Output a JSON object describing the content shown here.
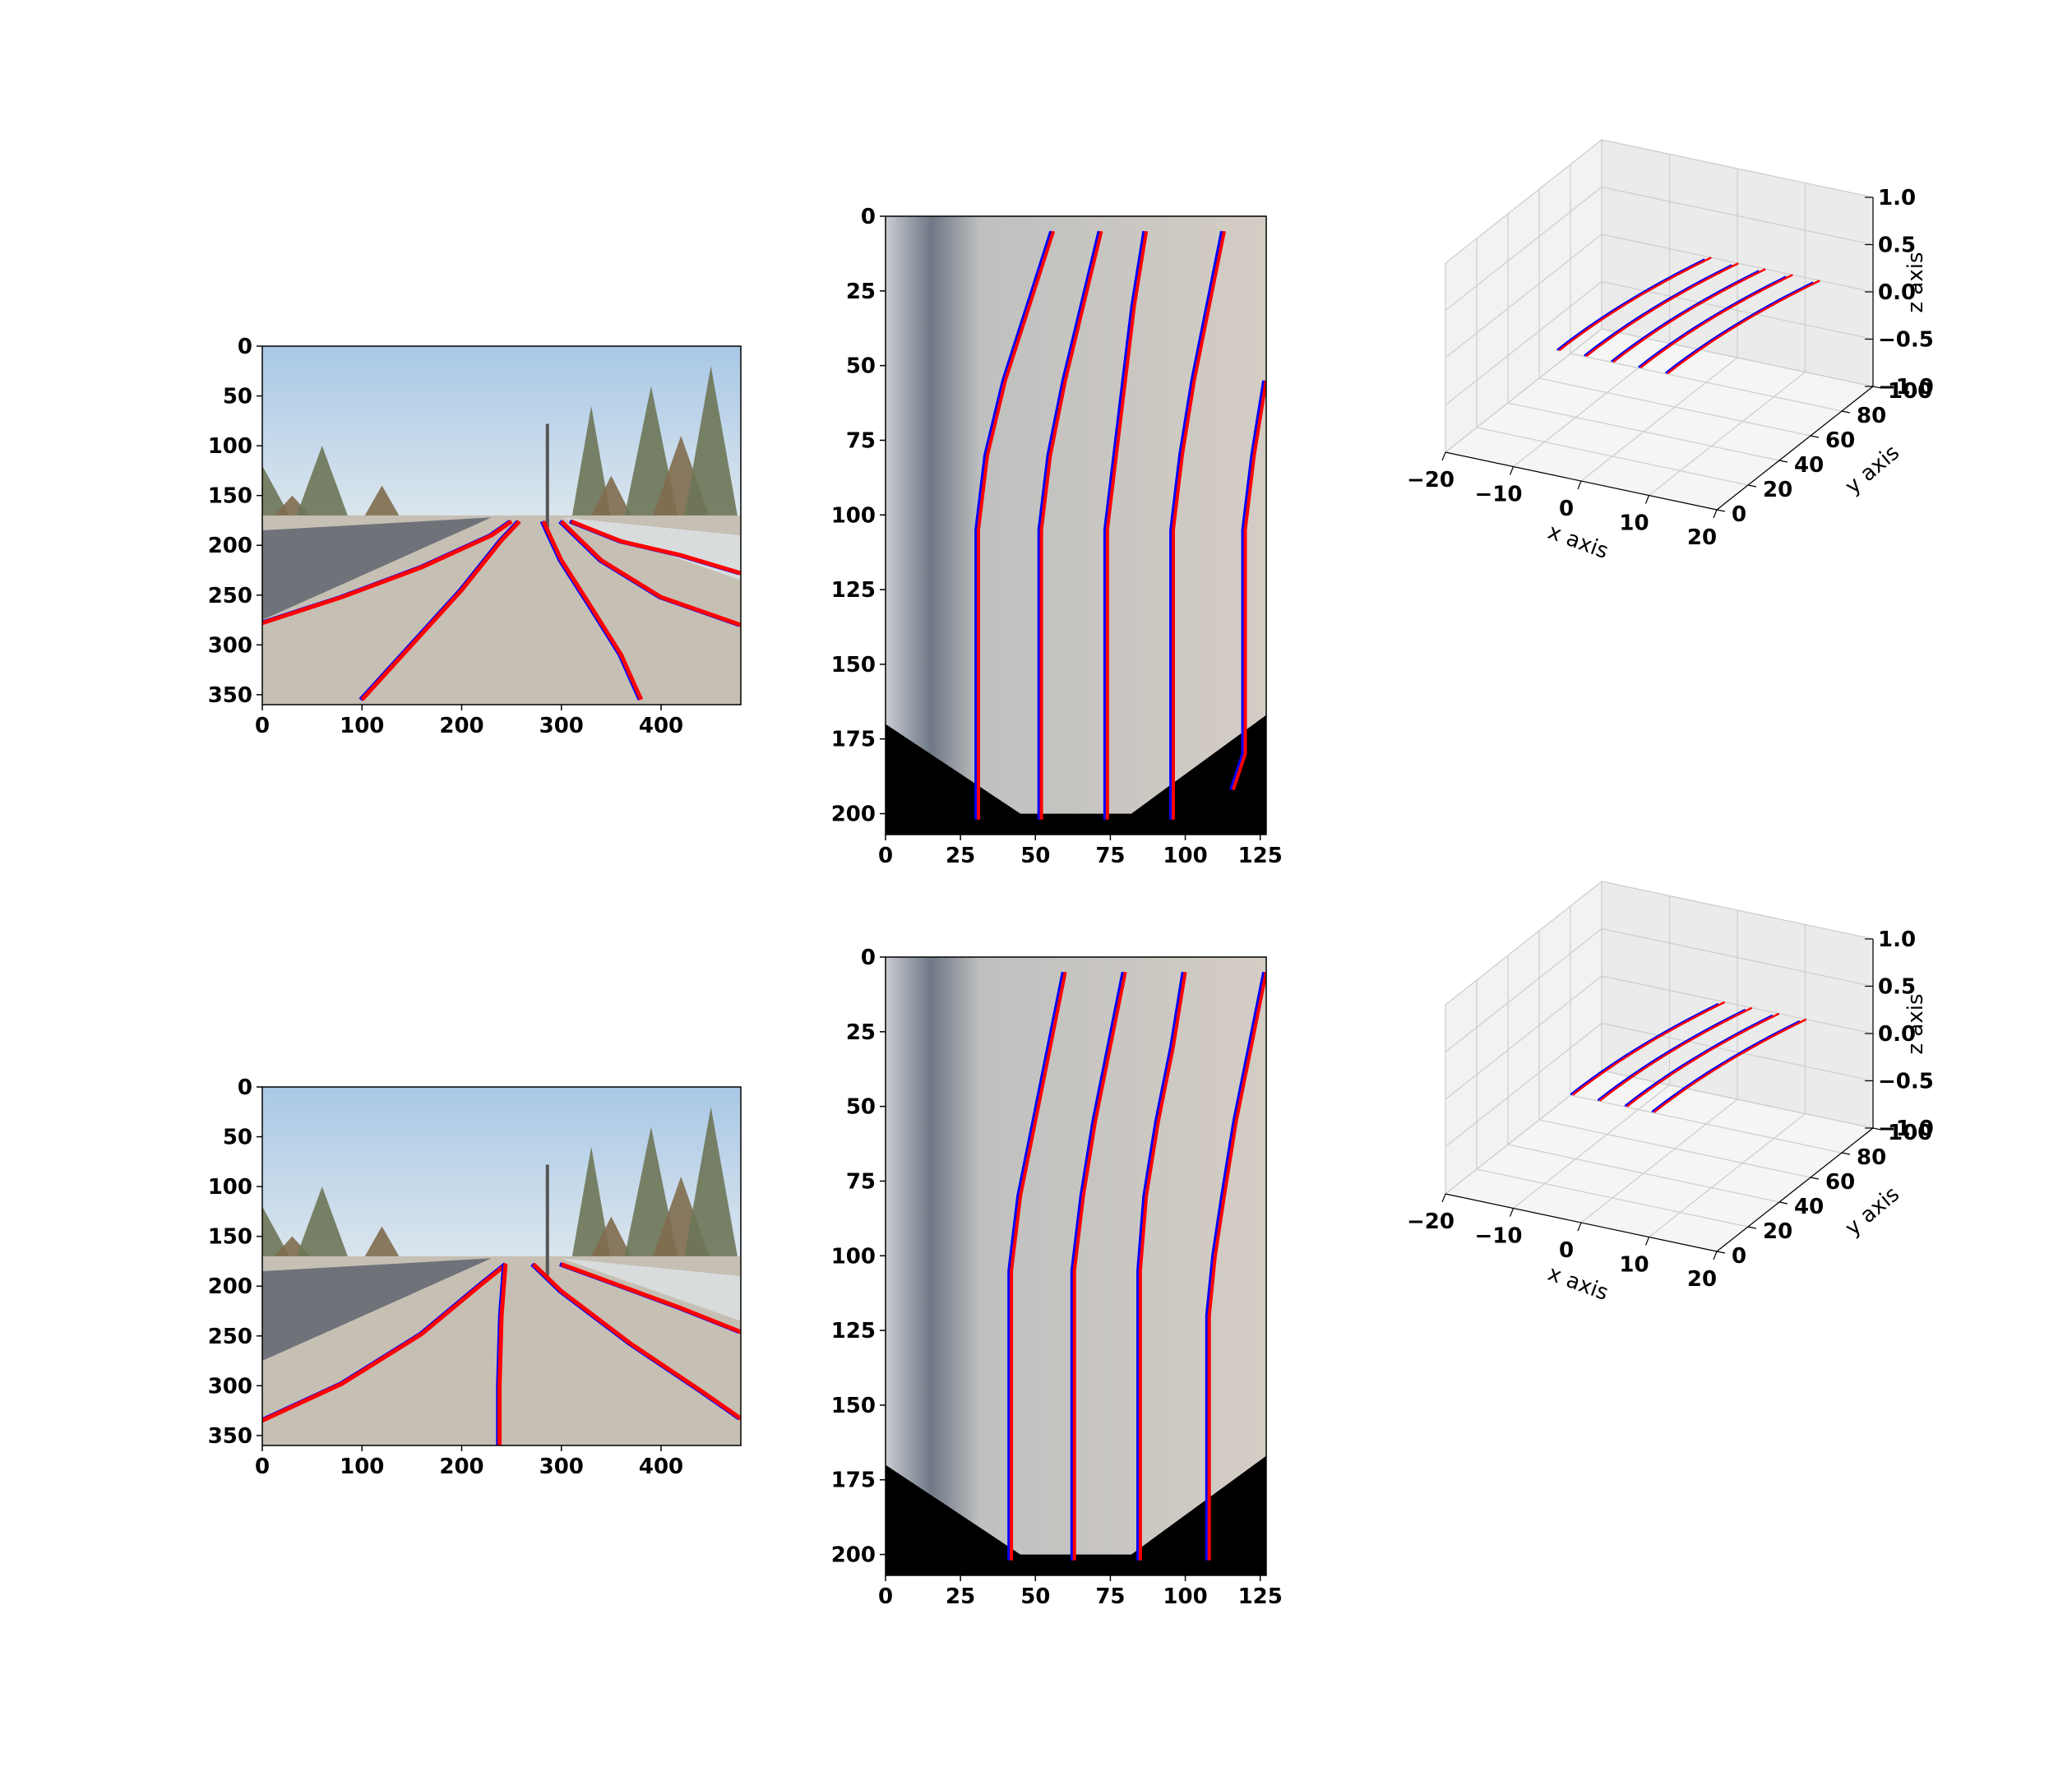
{
  "colors": {
    "ground_truth": "#0000ff",
    "prediction": "#ff0000",
    "sky": "#b9d3ea",
    "road": "#c6bfb4",
    "grid_pane": "#f2f2f2"
  },
  "chart_data": [
    {
      "name": "row1-camera-view",
      "type": "image",
      "xlim": [
        0,
        480
      ],
      "ylim": [
        360,
        0
      ],
      "xticks": [
        0,
        100,
        200,
        300,
        400
      ],
      "yticks": [
        0,
        50,
        100,
        150,
        200,
        250,
        300,
        350
      ],
      "lanes": [
        [
          [
            0,
            278
          ],
          [
            80,
            252
          ],
          [
            160,
            222
          ],
          [
            230,
            190
          ],
          [
            250,
            176
          ]
        ],
        [
          [
            100,
            355
          ],
          [
            150,
            300
          ],
          [
            200,
            245
          ],
          [
            240,
            195
          ],
          [
            258,
            176
          ]
        ],
        [
          [
            282,
            176
          ],
          [
            300,
            215
          ],
          [
            330,
            262
          ],
          [
            360,
            310
          ],
          [
            380,
            355
          ]
        ],
        [
          [
            300,
            176
          ],
          [
            340,
            215
          ],
          [
            400,
            252
          ],
          [
            480,
            280
          ]
        ],
        [
          [
            310,
            176
          ],
          [
            360,
            196
          ],
          [
            420,
            210
          ],
          [
            480,
            228
          ]
        ]
      ]
    },
    {
      "name": "row1-bev-view",
      "type": "image",
      "xlim": [
        0,
        127
      ],
      "ylim": [
        207,
        0
      ],
      "xticks": [
        0,
        25,
        50,
        75,
        100,
        125
      ],
      "yticks": [
        0,
        25,
        50,
        75,
        100,
        125,
        150,
        175,
        200
      ],
      "lanes": [
        [
          [
            31,
            202
          ],
          [
            31,
            105
          ],
          [
            34,
            80
          ],
          [
            40,
            55
          ],
          [
            48,
            30
          ],
          [
            56,
            5
          ]
        ],
        [
          [
            52,
            202
          ],
          [
            52,
            105
          ],
          [
            55,
            80
          ],
          [
            60,
            55
          ],
          [
            66,
            30
          ],
          [
            72,
            5
          ]
        ],
        [
          [
            74,
            202
          ],
          [
            74,
            105
          ],
          [
            77,
            80
          ],
          [
            80,
            55
          ],
          [
            83,
            30
          ],
          [
            87,
            5
          ]
        ],
        [
          [
            96,
            202
          ],
          [
            96,
            105
          ],
          [
            99,
            80
          ],
          [
            103,
            55
          ],
          [
            108,
            30
          ],
          [
            113,
            5
          ]
        ],
        [
          [
            116,
            192
          ],
          [
            120,
            180
          ],
          [
            120,
            105
          ],
          [
            123,
            80
          ],
          [
            127,
            55
          ]
        ]
      ]
    },
    {
      "name": "row1-3d-view",
      "type": "line3d",
      "xlabel": "x axis",
      "ylabel": "y axis",
      "zlabel": "z axis",
      "xlim": [
        -20,
        20
      ],
      "ylim": [
        0,
        100
      ],
      "zlim": [
        -1.0,
        1.0
      ],
      "xticks": [
        -20,
        -10,
        0,
        10,
        20
      ],
      "yticks": [
        0,
        20,
        40,
        60,
        80,
        100
      ],
      "zticks": [
        "-1.0",
        "-0.5",
        "0.0",
        "0.5",
        "1.0"
      ],
      "lanes_x_offset": [
        -8,
        -4,
        0,
        4,
        8
      ],
      "lanes_curve": 4
    },
    {
      "name": "row2-camera-view",
      "type": "image",
      "xlim": [
        0,
        480
      ],
      "ylim": [
        360,
        0
      ],
      "xticks": [
        0,
        100,
        200,
        300,
        400
      ],
      "yticks": [
        0,
        50,
        100,
        150,
        200,
        250,
        300,
        350
      ],
      "lanes": [
        [
          [
            0,
            335
          ],
          [
            80,
            298
          ],
          [
            160,
            248
          ],
          [
            220,
            198
          ],
          [
            245,
            178
          ]
        ],
        [
          [
            238,
            360
          ],
          [
            238,
            300
          ],
          [
            240,
            230
          ],
          [
            244,
            178
          ]
        ],
        [
          [
            272,
            178
          ],
          [
            300,
            205
          ],
          [
            370,
            258
          ],
          [
            440,
            305
          ],
          [
            480,
            333
          ]
        ],
        [
          [
            300,
            178
          ],
          [
            360,
            200
          ],
          [
            420,
            222
          ],
          [
            480,
            246
          ]
        ]
      ]
    },
    {
      "name": "row2-bev-view",
      "type": "image",
      "xlim": [
        0,
        127
      ],
      "ylim": [
        207,
        0
      ],
      "xticks": [
        0,
        25,
        50,
        75,
        100,
        125
      ],
      "yticks": [
        0,
        25,
        50,
        75,
        100,
        125,
        150,
        175,
        200
      ],
      "lanes": [
        [
          [
            42,
            202
          ],
          [
            42,
            105
          ],
          [
            45,
            80
          ],
          [
            50,
            55
          ],
          [
            55,
            30
          ],
          [
            60,
            5
          ]
        ],
        [
          [
            63,
            202
          ],
          [
            63,
            105
          ],
          [
            66,
            80
          ],
          [
            70,
            55
          ],
          [
            75,
            30
          ],
          [
            80,
            5
          ]
        ],
        [
          [
            85,
            202
          ],
          [
            85,
            105
          ],
          [
            87,
            80
          ],
          [
            91,
            55
          ],
          [
            96,
            30
          ],
          [
            100,
            5
          ]
        ],
        [
          [
            108,
            202
          ],
          [
            108,
            120
          ],
          [
            110,
            100
          ],
          [
            113,
            80
          ],
          [
            117,
            55
          ],
          [
            122,
            30
          ],
          [
            127,
            5
          ]
        ]
      ]
    },
    {
      "name": "row2-3d-view",
      "type": "line3d",
      "xlabel": "x axis",
      "ylabel": "y axis",
      "zlabel": "z axis",
      "xlim": [
        -20,
        20
      ],
      "ylim": [
        0,
        100
      ],
      "zlim": [
        -1.0,
        1.0
      ],
      "xticks": [
        -20,
        -10,
        0,
        10,
        20
      ],
      "yticks": [
        0,
        20,
        40,
        60,
        80,
        100
      ],
      "zticks": [
        "-1.0",
        "-0.5",
        "0.0",
        "0.5",
        "1.0"
      ],
      "lanes_x_offset": [
        -6,
        -2,
        2,
        6
      ],
      "lanes_curve": 4
    }
  ]
}
